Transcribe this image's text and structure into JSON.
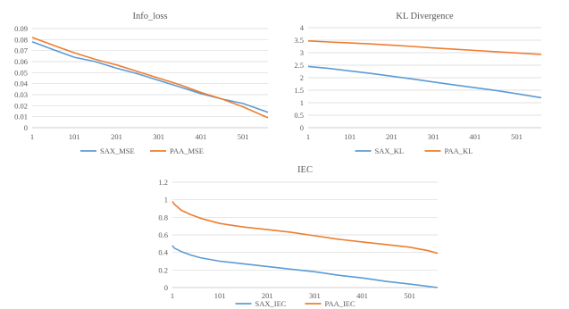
{
  "chart_data": [
    {
      "type": "line",
      "title": "Info_loss",
      "xlabel": "",
      "ylabel": "",
      "x_ticks": [
        "1",
        "101",
        "201",
        "301",
        "401",
        "501"
      ],
      "y_ticks": [
        "0",
        "0.01",
        "0.02",
        "0.03",
        "0.04",
        "0.05",
        "0.06",
        "0.07",
        "0.08",
        "0.09"
      ],
      "xlim": [
        1,
        560
      ],
      "ylim": [
        0,
        0.09
      ],
      "grid": true,
      "legend": "bottom",
      "series": [
        {
          "name": "SAX_MSE",
          "color": "#5b9bd5",
          "x": [
            1,
            50,
            101,
            151,
            201,
            251,
            301,
            351,
            401,
            451,
            501,
            560
          ],
          "y": [
            0.078,
            0.071,
            0.064,
            0.06,
            0.054,
            0.049,
            0.043,
            0.037,
            0.031,
            0.026,
            0.022,
            0.014
          ]
        },
        {
          "name": "PAA_MSE",
          "color": "#ed7d31",
          "x": [
            1,
            50,
            101,
            151,
            201,
            251,
            301,
            351,
            401,
            451,
            501,
            560
          ],
          "y": [
            0.082,
            0.075,
            0.068,
            0.062,
            0.057,
            0.051,
            0.045,
            0.039,
            0.032,
            0.026,
            0.019,
            0.009
          ]
        }
      ]
    },
    {
      "type": "line",
      "title": "KL Divergence",
      "xlabel": "",
      "ylabel": "",
      "x_ticks": [
        "1",
        "101",
        "201",
        "301",
        "401",
        "501"
      ],
      "y_ticks": [
        "0",
        "0.5",
        "1",
        "1.5",
        "2",
        "2.5",
        "3",
        "3.5",
        "4"
      ],
      "xlim": [
        1,
        560
      ],
      "ylim": [
        0,
        4
      ],
      "grid": true,
      "legend": "bottom",
      "series": [
        {
          "name": "SAX_KL",
          "color": "#5b9bd5",
          "x": [
            1,
            50,
            101,
            151,
            201,
            251,
            301,
            351,
            401,
            451,
            501,
            560
          ],
          "y": [
            2.45,
            2.37,
            2.27,
            2.17,
            2.06,
            1.95,
            1.83,
            1.71,
            1.6,
            1.49,
            1.36,
            1.2
          ]
        },
        {
          "name": "PAA_KL",
          "color": "#ed7d31",
          "x": [
            1,
            50,
            101,
            151,
            201,
            251,
            301,
            351,
            401,
            451,
            501,
            560
          ],
          "y": [
            3.47,
            3.43,
            3.39,
            3.35,
            3.3,
            3.25,
            3.19,
            3.14,
            3.09,
            3.04,
            2.99,
            2.93
          ]
        }
      ]
    },
    {
      "type": "line",
      "title": "IEC",
      "xlabel": "",
      "ylabel": "",
      "x_ticks": [
        "1",
        "101",
        "201",
        "301",
        "401",
        "501"
      ],
      "y_ticks": [
        "0",
        "0.2",
        "0.4",
        "0.6",
        "0.8",
        "1",
        "1.2"
      ],
      "xlim": [
        1,
        560
      ],
      "ylim": [
        0,
        1.2
      ],
      "grid": true,
      "legend": "bottom",
      "series": [
        {
          "name": "SAX_IEC",
          "color": "#5b9bd5",
          "x": [
            1,
            5,
            20,
            40,
            60,
            101,
            151,
            201,
            251,
            301,
            351,
            401,
            451,
            501,
            560
          ],
          "y": [
            0.48,
            0.45,
            0.41,
            0.37,
            0.34,
            0.3,
            0.27,
            0.24,
            0.21,
            0.18,
            0.14,
            0.11,
            0.07,
            0.04,
            0.0
          ]
        },
        {
          "name": "PAA_IEC",
          "color": "#ed7d31",
          "x": [
            1,
            5,
            20,
            40,
            60,
            80,
            101,
            151,
            201,
            251,
            301,
            351,
            401,
            451,
            501,
            540,
            560
          ],
          "y": [
            0.98,
            0.95,
            0.88,
            0.83,
            0.79,
            0.76,
            0.73,
            0.69,
            0.66,
            0.63,
            0.59,
            0.55,
            0.52,
            0.49,
            0.46,
            0.42,
            0.39
          ]
        }
      ]
    }
  ]
}
